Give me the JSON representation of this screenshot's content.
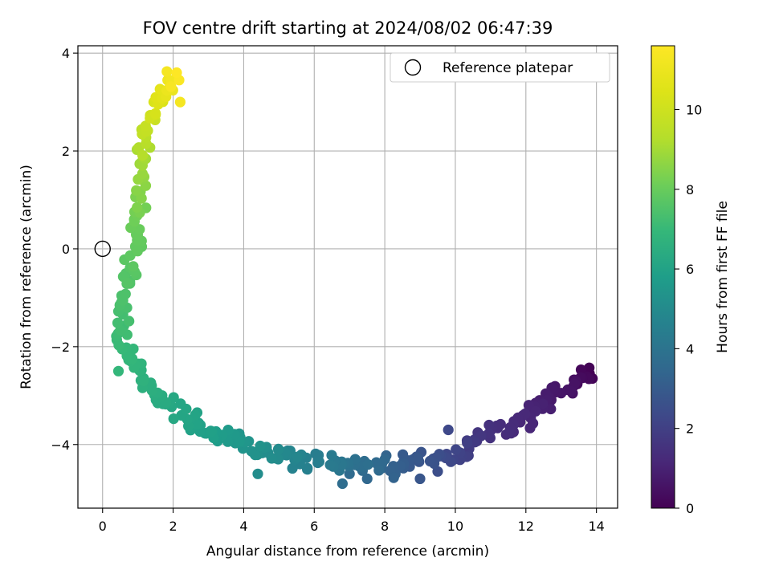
{
  "chart_data": {
    "type": "scatter",
    "title": "FOV centre drift starting at 2024/08/02 06:47:39",
    "xlabel": "Angular distance from reference (arcmin)",
    "ylabel": "Rotation from reference (arcmin)",
    "xlim": [
      -0.7,
      14.6
    ],
    "ylim": [
      -5.3,
      4.15
    ],
    "xticks": [
      0,
      2,
      4,
      6,
      8,
      10,
      12,
      14
    ],
    "yticks": [
      -4,
      -2,
      0,
      2,
      4
    ],
    "grid": true,
    "legend": {
      "position": "top-right",
      "entries": [
        "Reference platepar"
      ]
    },
    "reference_point": {
      "x": 0,
      "y": 0,
      "label": "Reference platepar"
    },
    "colorbar": {
      "label": "Hours from first FF file",
      "min": 0,
      "max": 11.6,
      "ticks": [
        0,
        2,
        4,
        6,
        8,
        10
      ],
      "colormap": "viridis"
    },
    "path": [
      [
        13.9,
        -2.5,
        0.0
      ],
      [
        13.7,
        -2.6,
        0.2
      ],
      [
        13.5,
        -2.7,
        0.3
      ],
      [
        13.3,
        -2.8,
        0.5
      ],
      [
        13.1,
        -2.9,
        0.6
      ],
      [
        12.7,
        -3.05,
        0.8
      ],
      [
        12.3,
        -3.3,
        1.0
      ],
      [
        12.2,
        -3.5,
        1.1
      ],
      [
        11.1,
        -3.7,
        1.4
      ],
      [
        10.8,
        -3.85,
        1.6
      ],
      [
        10.5,
        -4.0,
        1.8
      ],
      [
        10.2,
        -4.1,
        2.0
      ],
      [
        9.9,
        -4.2,
        2.2
      ],
      [
        9.6,
        -4.25,
        2.4
      ],
      [
        9.3,
        -4.3,
        2.6
      ],
      [
        9.0,
        -4.35,
        2.8
      ],
      [
        8.6,
        -4.4,
        3.0
      ],
      [
        8.3,
        -4.45,
        3.2
      ],
      [
        8.0,
        -4.45,
        3.4
      ],
      [
        7.6,
        -4.45,
        3.6
      ],
      [
        7.2,
        -4.4,
        3.8
      ],
      [
        6.9,
        -4.35,
        4.0
      ],
      [
        6.5,
        -4.3,
        4.2
      ],
      [
        6.1,
        -4.3,
        4.4
      ],
      [
        5.7,
        -4.3,
        4.6
      ],
      [
        5.3,
        -4.25,
        4.8
      ],
      [
        4.9,
        -4.2,
        5.0
      ],
      [
        4.5,
        -4.1,
        5.2
      ],
      [
        4.1,
        -4.0,
        5.4
      ],
      [
        3.6,
        -3.9,
        5.6
      ],
      [
        3.1,
        -3.75,
        5.8
      ],
      [
        2.6,
        -3.55,
        6.0
      ],
      [
        2.1,
        -3.3,
        6.2
      ],
      [
        1.6,
        -3.0,
        6.4
      ],
      [
        1.2,
        -2.7,
        6.6
      ],
      [
        0.9,
        -2.4,
        6.8
      ],
      [
        0.6,
        -2.0,
        7.0
      ],
      [
        0.55,
        -1.6,
        7.2
      ],
      [
        0.6,
        -1.1,
        7.4
      ],
      [
        0.75,
        -0.6,
        7.6
      ],
      [
        0.9,
        -0.1,
        7.8
      ],
      [
        0.95,
        0.4,
        8.0
      ],
      [
        1.05,
        0.9,
        8.3
      ],
      [
        1.1,
        1.4,
        8.7
      ],
      [
        1.15,
        1.9,
        9.1
      ],
      [
        1.2,
        2.3,
        9.5
      ],
      [
        1.35,
        2.7,
        10.0
      ],
      [
        1.55,
        3.0,
        10.5
      ],
      [
        1.85,
        3.3,
        11.0
      ],
      [
        2.1,
        3.6,
        11.6
      ]
    ],
    "outliers": [
      [
        6.8,
        -4.8,
        3.7
      ],
      [
        7.5,
        -4.7,
        3.5
      ],
      [
        8.3,
        -4.6,
        3.2
      ],
      [
        9.0,
        -4.7,
        2.8
      ],
      [
        9.8,
        -3.7,
        2.3
      ],
      [
        0.45,
        -2.5,
        6.9
      ],
      [
        4.4,
        -4.6,
        5.1
      ],
      [
        2.2,
        3.0,
        11.3
      ],
      [
        7.0,
        -4.6,
        3.6
      ],
      [
        9.5,
        -4.55,
        2.5
      ]
    ]
  }
}
